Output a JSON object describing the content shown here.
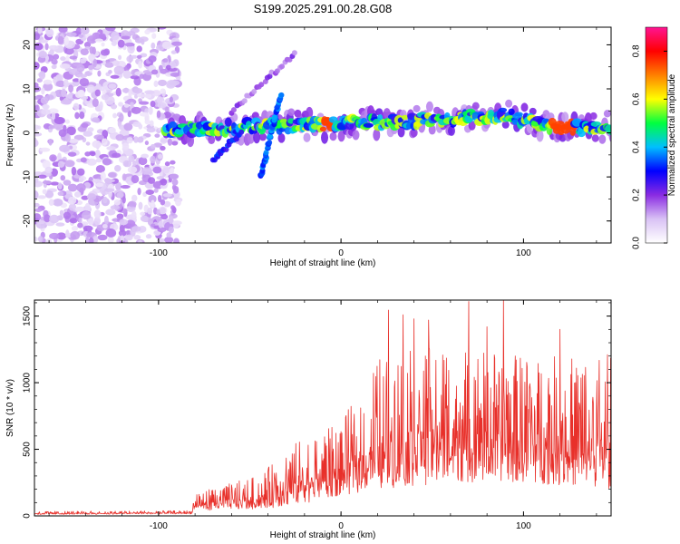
{
  "chart_data": [
    {
      "type": "heatmap",
      "title": "S199.2025.291.00.28.G08",
      "xlabel": "Height of straight line (km)",
      "ylabel": "Frequency (Hz)",
      "xlim": [
        -168,
        148
      ],
      "ylim": [
        -25,
        24
      ],
      "x_ticks": [
        -100,
        0,
        100
      ],
      "y_ticks": [
        -20,
        -10,
        0,
        10,
        20
      ],
      "colorbar": {
        "label": "Normalized spectral amplitude",
        "range": [
          0.0,
          0.9
        ],
        "ticks": [
          0.0,
          0.2,
          0.4,
          0.6,
          0.8
        ],
        "colors": [
          "#ffffff",
          "#d9c2f5",
          "#8a2be2",
          "#0000ff",
          "#00bfff",
          "#00ff40",
          "#ffff00",
          "#ff8000",
          "#ff0000",
          "#ff1493"
        ]
      },
      "features": [
        {
          "name": "noise-region",
          "x_range": [
            -168,
            -93
          ],
          "f_range": [
            -25,
            24
          ],
          "amplitude": 0.1
        },
        {
          "name": "main-band",
          "x_range": [
            -97,
            148
          ],
          "f_center": [
            [
              -97,
              0.5
            ],
            [
              -50,
              1.5
            ],
            [
              0,
              2.0
            ],
            [
              50,
              3.0
            ],
            [
              90,
              4.0
            ],
            [
              120,
              1.0
            ],
            [
              148,
              1.5
            ]
          ],
          "amplitude_peak": 0.9
        },
        {
          "name": "steep-streak",
          "x_range": [
            -44,
            -33
          ],
          "f_range": [
            -10,
            9
          ]
        },
        {
          "name": "faint-streak-upper",
          "x_range": [
            -60,
            -25
          ],
          "f_range": [
            5,
            18
          ]
        },
        {
          "name": "left-streak",
          "x_range": [
            -70,
            -55
          ],
          "f_range": [
            -6,
            0
          ]
        }
      ]
    },
    {
      "type": "line",
      "xlabel": "Height of straight line (km)",
      "ylabel": "SNR (10 * v/v)",
      "xlim": [
        -168,
        148
      ],
      "ylim": [
        0,
        1620
      ],
      "x_ticks": [
        -100,
        0,
        100
      ],
      "y_ticks": [
        0,
        500,
        1000,
        1500
      ],
      "color": "#e8302a",
      "envelope": [
        {
          "x": -168,
          "base": 10,
          "peak": 35
        },
        {
          "x": -82,
          "base": 15,
          "peak": 40
        },
        {
          "x": -80,
          "base": 40,
          "peak": 180
        },
        {
          "x": -45,
          "base": 50,
          "peak": 300
        },
        {
          "x": -25,
          "base": 80,
          "peak": 550
        },
        {
          "x": 0,
          "base": 150,
          "peak": 700
        },
        {
          "x": 20,
          "base": 200,
          "peak": 1200
        },
        {
          "x": 60,
          "base": 250,
          "peak": 1300
        },
        {
          "x": 100,
          "base": 250,
          "peak": 1200
        },
        {
          "x": 148,
          "base": 200,
          "peak": 1200
        }
      ],
      "spikes": [
        {
          "x": 26,
          "y": 1545
        },
        {
          "x": 34,
          "y": 1510
        },
        {
          "x": 40,
          "y": 1480
        },
        {
          "x": 48,
          "y": 1470
        },
        {
          "x": 70,
          "y": 1610
        },
        {
          "x": 80,
          "y": 1420
        },
        {
          "x": 89,
          "y": 1620
        },
        {
          "x": 120,
          "y": 1400
        },
        {
          "x": 146,
          "y": 1210
        }
      ]
    }
  ]
}
